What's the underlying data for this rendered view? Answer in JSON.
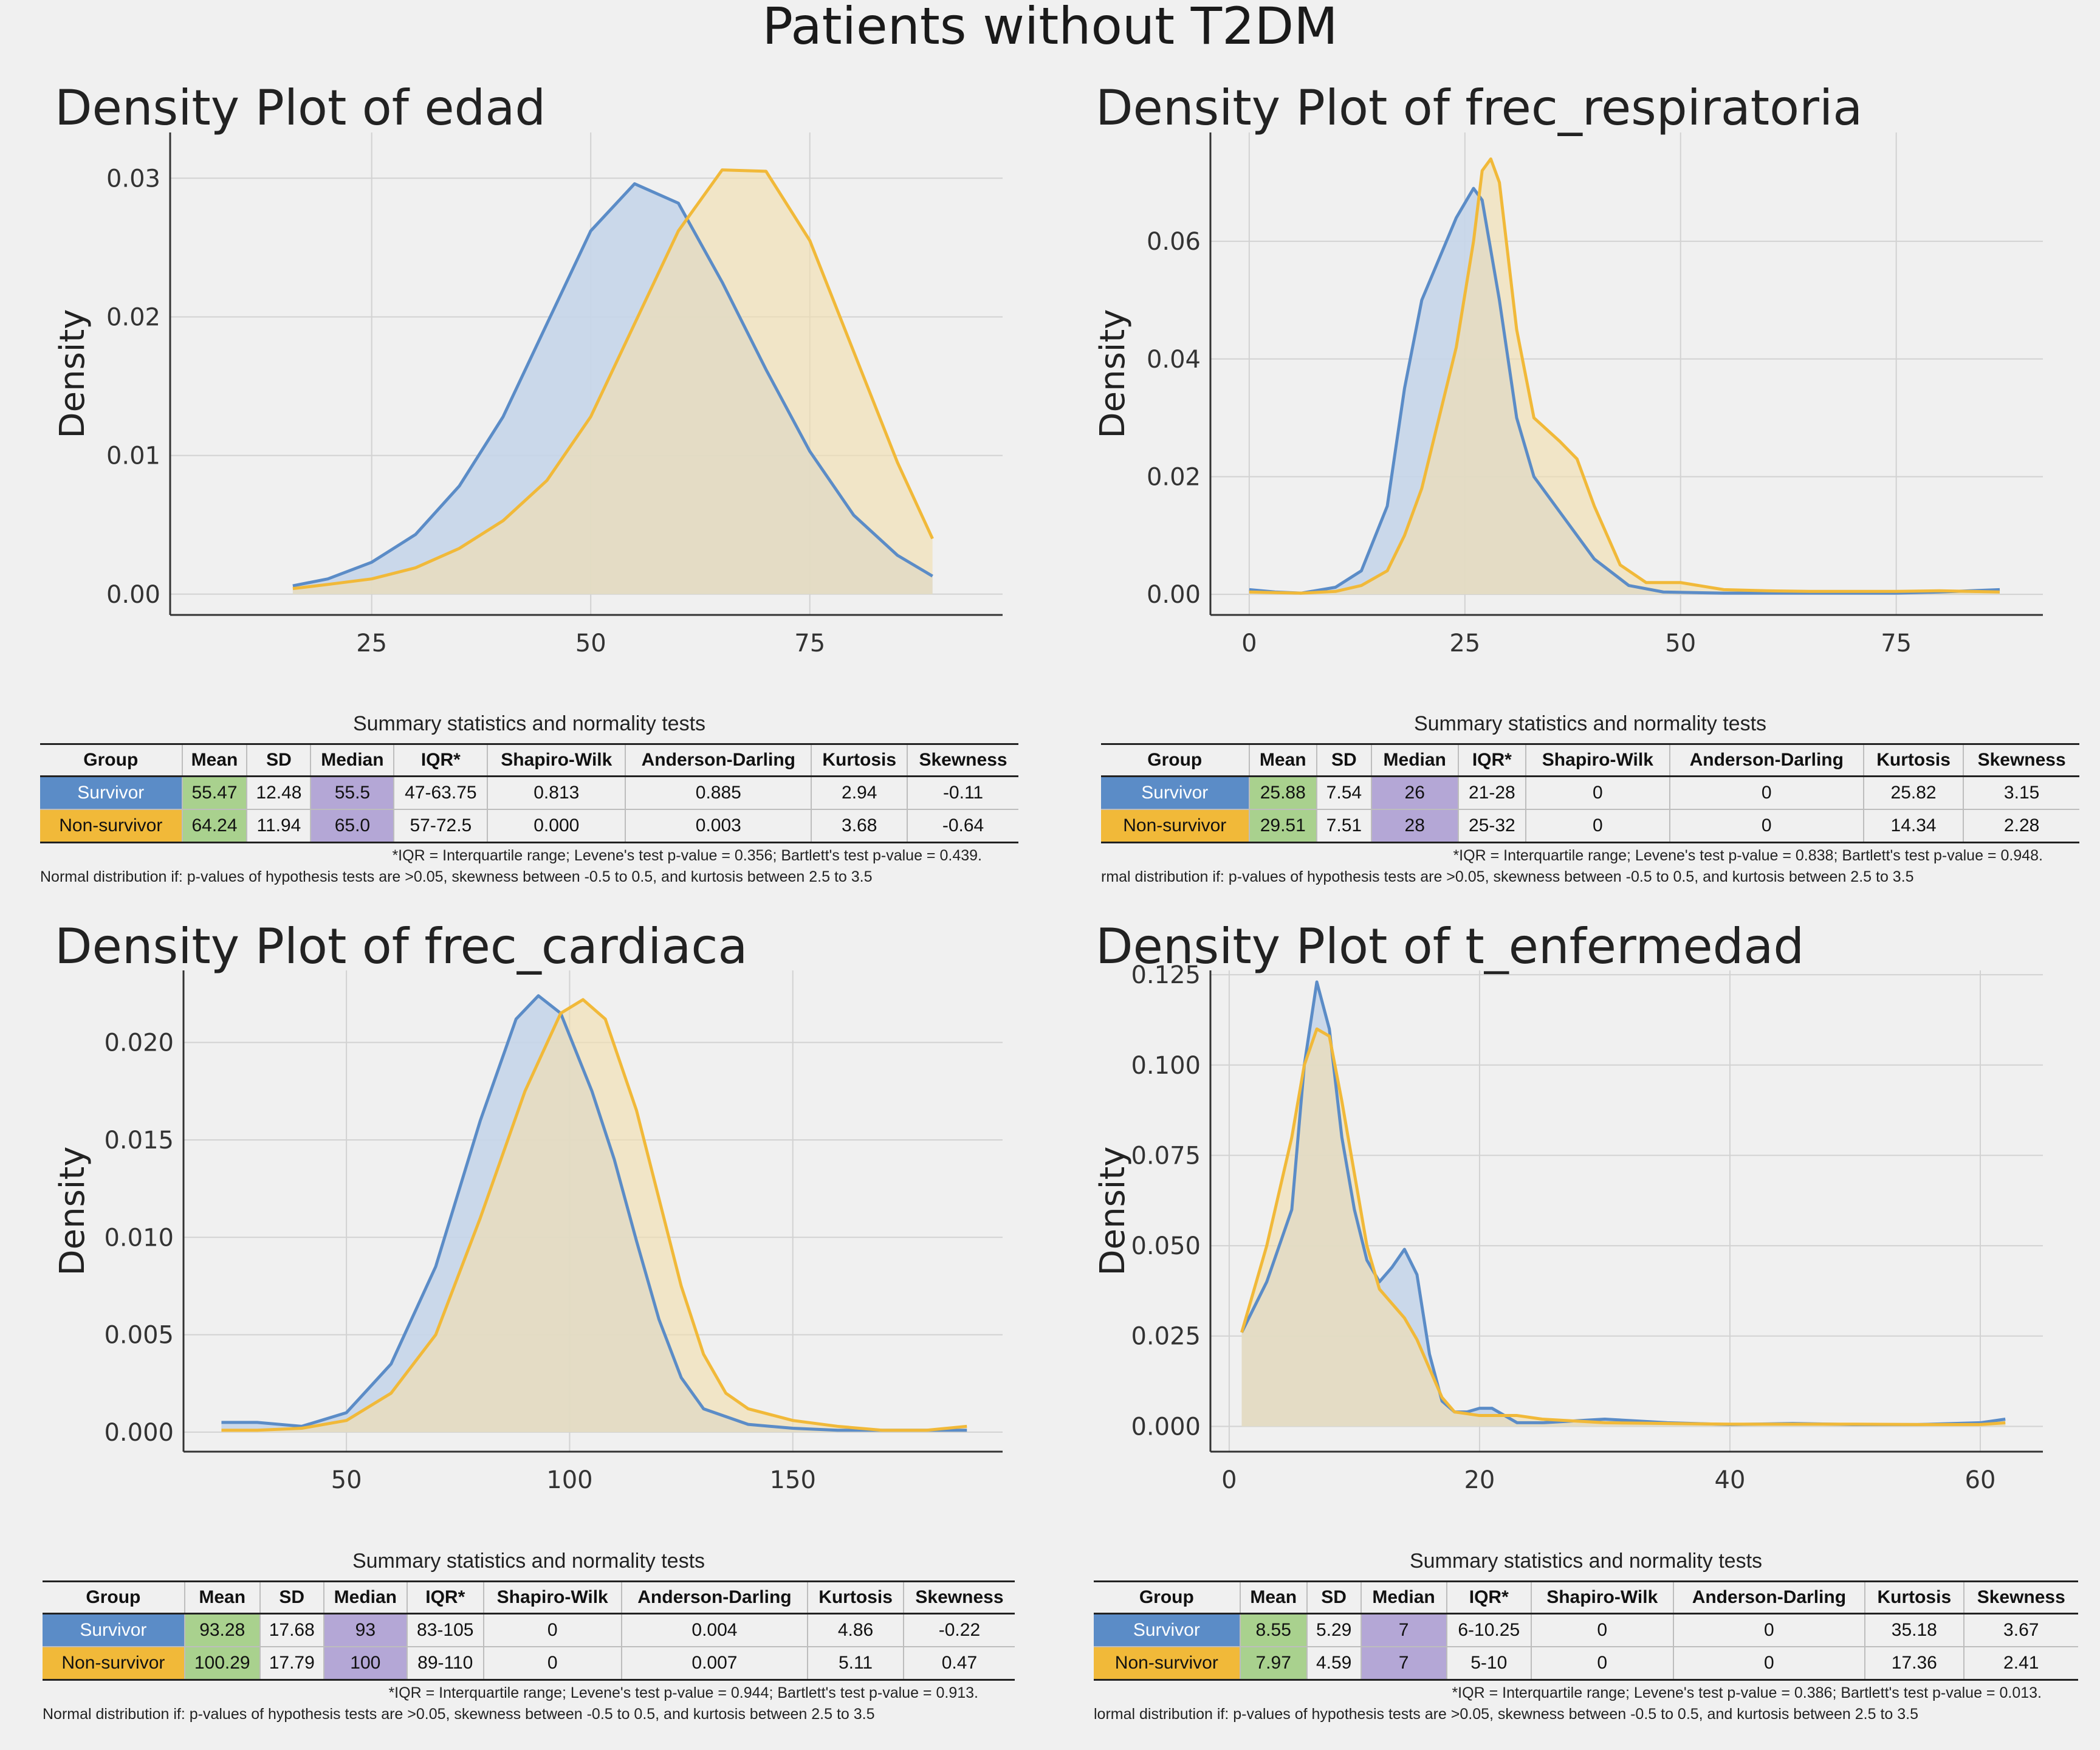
{
  "page_title": "Patients without T2DM",
  "colors": {
    "survivor": "#5b8cc7",
    "survivor_fill": "#c5d5e9",
    "nonsurvivor": "#f1b939",
    "nonsurvivor_fill": "#f1dfb0",
    "mean_cell": "#a9d18e",
    "median_cell": "#b4a7d6"
  },
  "groups": [
    "Survivor",
    "Non-survivor"
  ],
  "chart_data": [
    {
      "type": "area",
      "title": "Density Plot of edad",
      "xlabel": "",
      "ylabel": "Density",
      "xlim": [
        2,
        97
      ],
      "ylim": [
        -0.0015,
        0.0333
      ],
      "xticks": [
        25,
        50,
        75
      ],
      "xtick_labels": [
        "25",
        "50",
        "75"
      ],
      "yticks": [
        0.0,
        0.01,
        0.02,
        0.03
      ],
      "ytick_labels": [
        "0.00",
        "0.01",
        "0.02",
        "0.03"
      ],
      "grid": true,
      "series": [
        {
          "name": "Survivor",
          "x": [
            16,
            20,
            25,
            30,
            35,
            40,
            45,
            50,
            55,
            60,
            65,
            70,
            75,
            80,
            85,
            89
          ],
          "y": [
            0.0006,
            0.0011,
            0.0023,
            0.0043,
            0.0078,
            0.0128,
            0.0195,
            0.0262,
            0.0296,
            0.0282,
            0.0225,
            0.0162,
            0.0103,
            0.0057,
            0.0028,
            0.0013
          ]
        },
        {
          "name": "Non-survivor",
          "x": [
            16,
            20,
            25,
            30,
            35,
            40,
            45,
            50,
            55,
            60,
            65,
            70,
            75,
            80,
            85,
            89
          ],
          "y": [
            0.0004,
            0.0007,
            0.0011,
            0.0019,
            0.0033,
            0.0053,
            0.0082,
            0.0128,
            0.0195,
            0.0262,
            0.0306,
            0.0305,
            0.0255,
            0.0175,
            0.0095,
            0.004
          ]
        }
      ]
    },
    {
      "type": "area",
      "title": "Density Plot of frec_respiratoria",
      "xlabel": "",
      "ylabel": "Density",
      "xlim": [
        -4.5,
        92
      ],
      "ylim": [
        -0.0035,
        0.0785
      ],
      "xticks": [
        0,
        25,
        50,
        75
      ],
      "xtick_labels": [
        "0",
        "25",
        "50",
        "75"
      ],
      "yticks": [
        0.0,
        0.02,
        0.04,
        0.06
      ],
      "ytick_labels": [
        "0.00",
        "0.02",
        "0.04",
        "0.06"
      ],
      "grid": true,
      "series": [
        {
          "name": "Survivor",
          "x": [
            0,
            3,
            6,
            10,
            13,
            16,
            18,
            20,
            22,
            24,
            26,
            27,
            29,
            31,
            33,
            36,
            40,
            44,
            48,
            55,
            65,
            75,
            80,
            87
          ],
          "y": [
            0.0008,
            0.0004,
            0.0002,
            0.0012,
            0.004,
            0.015,
            0.035,
            0.05,
            0.057,
            0.064,
            0.069,
            0.067,
            0.05,
            0.03,
            0.02,
            0.014,
            0.006,
            0.0015,
            0.0004,
            0.0002,
            0.0002,
            0.0002,
            0.0004,
            0.0008
          ]
        },
        {
          "name": "Non-survivor",
          "x": [
            0,
            3,
            6,
            10,
            13,
            16,
            18,
            20,
            22,
            24,
            26,
            27,
            28,
            29,
            31,
            33,
            36,
            38,
            40,
            43,
            46,
            50,
            55,
            60,
            65,
            70,
            75,
            80,
            87
          ],
          "y": [
            0.0004,
            0.0003,
            0.0002,
            0.0005,
            0.0015,
            0.004,
            0.01,
            0.018,
            0.03,
            0.042,
            0.06,
            0.072,
            0.074,
            0.07,
            0.045,
            0.03,
            0.026,
            0.023,
            0.015,
            0.005,
            0.002,
            0.002,
            0.0008,
            0.0006,
            0.0005,
            0.0005,
            0.0005,
            0.0006,
            0.0004
          ]
        }
      ]
    },
    {
      "type": "area",
      "title": "Density Plot of frec_cardiaca",
      "xlabel": "",
      "ylabel": "Density",
      "xlim": [
        13.5,
        197
      ],
      "ylim": [
        -0.001,
        0.0237
      ],
      "xticks": [
        50,
        100,
        150
      ],
      "xtick_labels": [
        "50",
        "100",
        "150"
      ],
      "yticks": [
        0.0,
        0.005,
        0.01,
        0.015,
        0.02
      ],
      "ytick_labels": [
        "0.000",
        "0.005",
        "0.010",
        "0.015",
        "0.020"
      ],
      "grid": true,
      "series": [
        {
          "name": "Survivor",
          "x": [
            22,
            30,
            40,
            50,
            60,
            70,
            80,
            88,
            93,
            98,
            105,
            110,
            115,
            120,
            125,
            130,
            140,
            150,
            160,
            170,
            180,
            189
          ],
          "y": [
            0.0005,
            0.0005,
            0.0003,
            0.001,
            0.0035,
            0.0085,
            0.016,
            0.0212,
            0.0224,
            0.0215,
            0.0175,
            0.014,
            0.0098,
            0.0058,
            0.0028,
            0.0012,
            0.0004,
            0.0002,
            0.0001,
            0.0001,
            0.0001,
            0.0001
          ]
        },
        {
          "name": "Non-survivor",
          "x": [
            22,
            30,
            40,
            50,
            60,
            70,
            80,
            90,
            98,
            103,
            108,
            115,
            120,
            125,
            130,
            135,
            140,
            150,
            160,
            170,
            180,
            189
          ],
          "y": [
            0.0001,
            0.0001,
            0.0002,
            0.0006,
            0.002,
            0.005,
            0.011,
            0.0175,
            0.0215,
            0.0222,
            0.0212,
            0.0165,
            0.012,
            0.0075,
            0.004,
            0.002,
            0.0012,
            0.0006,
            0.0003,
            0.0001,
            0.0001,
            0.0003
          ]
        }
      ]
    },
    {
      "type": "area",
      "title": "Density Plot of t_enfermedad",
      "xlabel": "",
      "ylabel": "Density",
      "xlim": [
        -1.5,
        65
      ],
      "ylim": [
        -0.007,
        0.1262
      ],
      "xticks": [
        0,
        20,
        40,
        60
      ],
      "xtick_labels": [
        "0",
        "20",
        "40",
        "60"
      ],
      "yticks": [
        0.0,
        0.025,
        0.05,
        0.075,
        0.1,
        0.125
      ],
      "ytick_labels": [
        "0.000",
        "0.025",
        "0.050",
        "0.075",
        "0.100",
        "0.125"
      ],
      "grid": true,
      "series": [
        {
          "name": "Survivor",
          "x": [
            1,
            3,
            5,
            6,
            7,
            8,
            9,
            10,
            11,
            12,
            13,
            14,
            15,
            16,
            17,
            18,
            19,
            20,
            21,
            22,
            23,
            25,
            30,
            35,
            40,
            45,
            50,
            55,
            60,
            62
          ],
          "y": [
            0.026,
            0.04,
            0.06,
            0.1,
            0.123,
            0.11,
            0.08,
            0.06,
            0.046,
            0.04,
            0.044,
            0.049,
            0.042,
            0.02,
            0.007,
            0.004,
            0.004,
            0.005,
            0.005,
            0.003,
            0.001,
            0.001,
            0.002,
            0.001,
            0.0005,
            0.0008,
            0.0005,
            0.0005,
            0.001,
            0.002
          ]
        },
        {
          "name": "Non-survivor",
          "x": [
            1,
            3,
            5,
            6,
            7,
            8,
            9,
            10,
            11,
            12,
            13,
            14,
            15,
            16,
            17,
            18,
            20,
            23,
            25,
            30,
            35,
            40,
            45,
            50,
            55,
            60,
            62
          ],
          "y": [
            0.026,
            0.05,
            0.08,
            0.1,
            0.11,
            0.108,
            0.09,
            0.07,
            0.05,
            0.038,
            0.034,
            0.03,
            0.024,
            0.016,
            0.008,
            0.004,
            0.003,
            0.003,
            0.002,
            0.001,
            0.0008,
            0.0006,
            0.0006,
            0.0006,
            0.0005,
            0.0005,
            0.001
          ]
        }
      ]
    }
  ],
  "tables": [
    {
      "title": "Summary statistics and normality tests",
      "headers": [
        "Group",
        "Mean",
        "SD",
        "Median",
        "IQR*",
        "Shapiro-Wilk",
        "Anderson-Darling",
        "Kurtosis",
        "Skewness"
      ],
      "rows": [
        [
          "Survivor",
          "55.47",
          "12.48",
          "55.5",
          "47-63.75",
          "0.813",
          "0.885",
          "2.94",
          "-0.11"
        ],
        [
          "Non-survivor",
          "64.24",
          "11.94",
          "65.0",
          "57-72.5",
          "0.000",
          "0.003",
          "3.68",
          "-0.64"
        ]
      ],
      "note1": "*IQR = Interquartile range; Levene's test p-value = 0.356; Bartlett's test p-value = 0.439.",
      "note2": "Normal distribution if: p-values of hypothesis tests are >0.05, skewness between -0.5 to 0.5, and kurtosis between 2.5 to 3.5"
    },
    {
      "title": "Summary statistics and normality tests",
      "headers": [
        "Group",
        "Mean",
        "SD",
        "Median",
        "IQR*",
        "Shapiro-Wilk",
        "Anderson-Darling",
        "Kurtosis",
        "Skewness"
      ],
      "rows": [
        [
          "Survivor",
          "25.88",
          "7.54",
          "26",
          "21-28",
          "0",
          "0",
          "25.82",
          "3.15"
        ],
        [
          "Non-survivor",
          "29.51",
          "7.51",
          "28",
          "25-32",
          "0",
          "0",
          "14.34",
          "2.28"
        ]
      ],
      "note1": "*IQR = Interquartile range; Levene's test p-value = 0.838; Bartlett's test p-value = 0.948.",
      "note2": "rmal distribution if: p-values of hypothesis tests are >0.05, skewness between -0.5 to 0.5, and kurtosis between 2.5 to 3.5"
    },
    {
      "title": "Summary statistics and normality tests",
      "headers": [
        "Group",
        "Mean",
        "SD",
        "Median",
        "IQR*",
        "Shapiro-Wilk",
        "Anderson-Darling",
        "Kurtosis",
        "Skewness"
      ],
      "rows": [
        [
          "Survivor",
          "93.28",
          "17.68",
          "93",
          "83-105",
          "0",
          "0.004",
          "4.86",
          "-0.22"
        ],
        [
          "Non-survivor",
          "100.29",
          "17.79",
          "100",
          "89-110",
          "0",
          "0.007",
          "5.11",
          "0.47"
        ]
      ],
      "note1": "*IQR = Interquartile range; Levene's test p-value = 0.944; Bartlett's test p-value = 0.913.",
      "note2": "Normal distribution if: p-values of hypothesis tests are >0.05, skewness between -0.5 to 0.5, and kurtosis between 2.5 to 3.5"
    },
    {
      "title": "Summary statistics and normality tests",
      "headers": [
        "Group",
        "Mean",
        "SD",
        "Median",
        "IQR*",
        "Shapiro-Wilk",
        "Anderson-Darling",
        "Kurtosis",
        "Skewness"
      ],
      "rows": [
        [
          "Survivor",
          "8.55",
          "5.29",
          "7",
          "6-10.25",
          "0",
          "0",
          "35.18",
          "3.67"
        ],
        [
          "Non-survivor",
          "7.97",
          "4.59",
          "7",
          "5-10",
          "0",
          "0",
          "17.36",
          "2.41"
        ]
      ],
      "note1": "*IQR = Interquartile range; Levene's test p-value = 0.386; Bartlett's test p-value = 0.013.",
      "note2": "lormal distribution if: p-values of hypothesis tests are >0.05, skewness between -0.5 to 0.5, and kurtosis between 2.5 to 3.5"
    }
  ]
}
